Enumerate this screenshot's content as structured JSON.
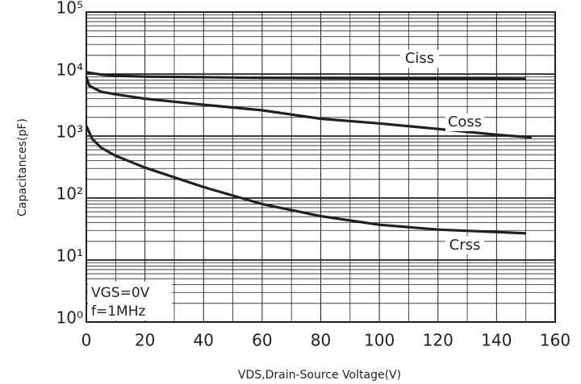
{
  "chart_data": {
    "type": "line",
    "y_label": "Capacitances(pF)",
    "x_label": "VDS,Drain-Source Voltage(V)",
    "notes": [
      "VGS=0V",
      "f=1MHz"
    ],
    "log_y": true,
    "grid": true,
    "minor_grid": true,
    "color": "#231f20",
    "xlim": [
      0,
      160
    ],
    "xticks": [
      0,
      20,
      40,
      60,
      80,
      100,
      120,
      140,
      160
    ],
    "ylim": [
      1,
      100000
    ],
    "yticks": [
      {
        "value": 1,
        "label": "10⁰"
      },
      {
        "value": 10,
        "label": "10¹"
      },
      {
        "value": 100,
        "label": "10²"
      },
      {
        "value": 1000,
        "label": "10³"
      },
      {
        "value": 10000,
        "label": "10⁴"
      },
      {
        "value": 100000,
        "label": "10⁵"
      }
    ],
    "series": [
      {
        "name": "Ciss",
        "x": [
          0,
          5,
          10,
          20,
          40,
          60,
          80,
          100,
          120,
          150
        ],
        "values": [
          10700,
          9800,
          9400,
          9100,
          8900,
          8700,
          8600,
          8500,
          8500,
          8400
        ]
      },
      {
        "name": "Coss",
        "x": [
          0,
          1,
          5,
          10,
          20,
          40,
          60,
          80,
          100,
          120,
          140,
          152
        ],
        "values": [
          9000,
          6500,
          5200,
          4700,
          4000,
          3200,
          2600,
          1900,
          1600,
          1300,
          1050,
          950
        ]
      },
      {
        "name": "Crss",
        "x": [
          0,
          2,
          5,
          10,
          20,
          40,
          60,
          80,
          100,
          120,
          150
        ],
        "values": [
          1450,
          900,
          650,
          480,
          310,
          150,
          80,
          51,
          37,
          31,
          27
        ]
      }
    ]
  }
}
